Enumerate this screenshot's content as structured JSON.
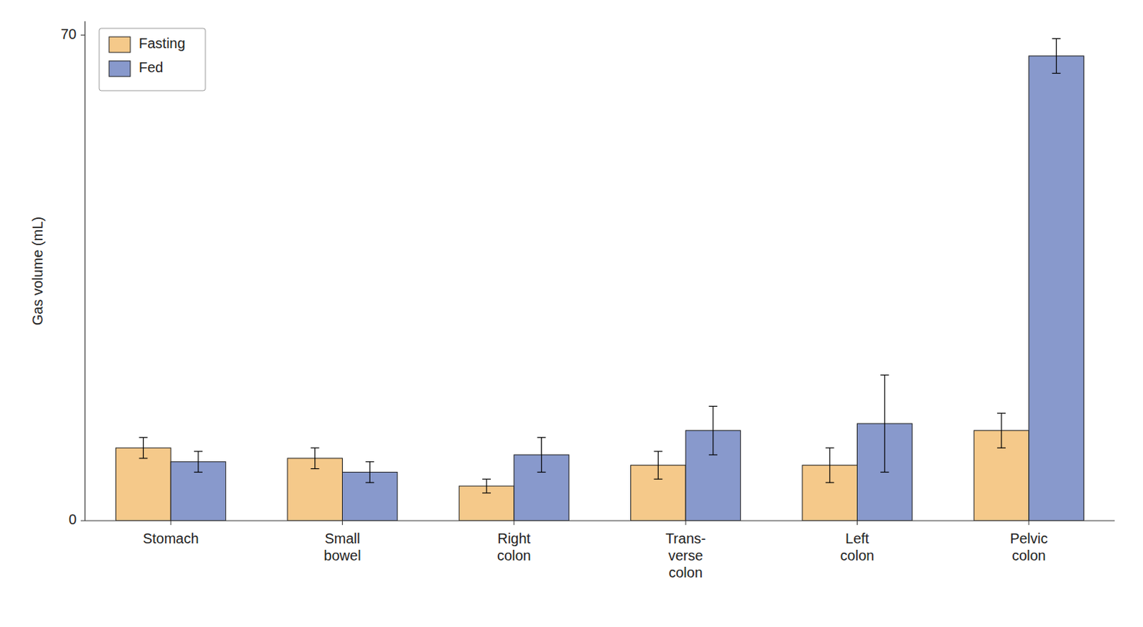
{
  "chart_data": {
    "type": "bar",
    "categories": [
      "Stomach",
      "Small\nbowel",
      "Right\ncolon",
      "Trans-\nverse\ncolon",
      "Left\ncolon",
      "Pelvic\ncolon"
    ],
    "series": [
      {
        "name": "Fasting",
        "color": "#F5C98A",
        "values": [
          10.5,
          9.0,
          5.0,
          8.0,
          8.0,
          13.0
        ],
        "errors": [
          1.5,
          1.5,
          1.0,
          2.0,
          2.5,
          2.5
        ]
      },
      {
        "name": "Fed",
        "color": "#8899CC",
        "values": [
          8.5,
          7.0,
          9.5,
          13.0,
          14.0,
          67.0
        ],
        "errors": [
          1.5,
          1.5,
          2.5,
          3.5,
          7.0,
          2.5
        ]
      }
    ],
    "ylabel": "Gas volume (mL)",
    "ylim": [
      0,
      72
    ],
    "yticks": [
      0,
      70
    ],
    "legend": "upper left",
    "grid": false
  }
}
